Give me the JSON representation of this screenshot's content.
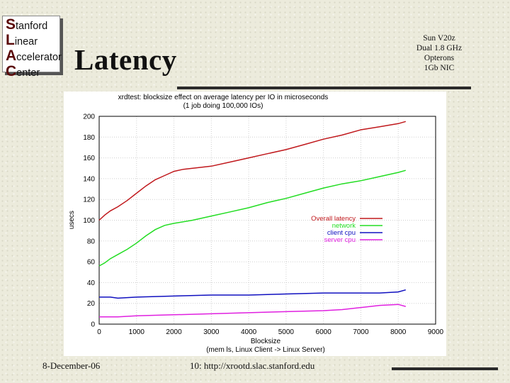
{
  "logo": {
    "lines": [
      {
        "cap": "S",
        "rest": "tanford"
      },
      {
        "cap": "L",
        "rest": "inear"
      },
      {
        "cap": "A",
        "rest": "ccelerator"
      },
      {
        "cap": "C",
        "rest": "enter"
      }
    ]
  },
  "slide": {
    "title": "Latency",
    "spec_lines": [
      "Sun V20z",
      "Dual 1.8 GHz",
      "Opterons",
      "1Gb NIC"
    ],
    "footer_date": "8-December-06",
    "footer_url": "10: http://xrootd.slac.stanford.edu"
  },
  "colors": {
    "overall": "#c0181c",
    "network": "#22dd22",
    "client": "#1010c0",
    "server": "#e020e0",
    "rule": "#2b2b2b"
  },
  "chart_data": {
    "type": "line",
    "title": "xrdtest: blocksize effect on average latency per IO in microseconds",
    "subtitle": "(1 job doing 100,000 IOs)",
    "xlabel": "Blocksize",
    "xlabel_note": "(mem ls, Linux Client -> Linux Server)",
    "ylabel": "usecs",
    "xlim": [
      0,
      9000
    ],
    "ylim": [
      0,
      200
    ],
    "x_ticks": [
      "0",
      "1000",
      "2000",
      "3000",
      "4000",
      "5000",
      "6000",
      "7000",
      "8000",
      "9000"
    ],
    "y_ticks": [
      "0",
      "20",
      "40",
      "60",
      "80",
      "100",
      "120",
      "140",
      "160",
      "180",
      "200"
    ],
    "grid": true,
    "legend_position": "right-middle",
    "series": [
      {
        "name": "Overall latency",
        "color": "#c0181c",
        "x": [
          0,
          150,
          300,
          500,
          750,
          1000,
          1250,
          1500,
          1750,
          2000,
          2250,
          2500,
          2750,
          3000,
          3500,
          4000,
          4500,
          5000,
          5500,
          6000,
          6500,
          7000,
          7500,
          8000,
          8200
        ],
        "y": [
          100,
          105,
          109,
          113,
          119,
          126,
          133,
          139,
          143,
          147,
          149,
          150,
          151,
          152,
          156,
          160,
          164,
          168,
          173,
          178,
          182,
          187,
          190,
          193,
          195
        ]
      },
      {
        "name": "network",
        "color": "#22dd22",
        "x": [
          0,
          150,
          300,
          500,
          750,
          1000,
          1250,
          1500,
          1750,
          2000,
          2500,
          3000,
          3500,
          4000,
          4500,
          5000,
          5500,
          6000,
          6500,
          7000,
          7500,
          8000,
          8200
        ],
        "y": [
          56,
          59,
          63,
          67,
          72,
          78,
          85,
          91,
          95,
          97,
          100,
          104,
          108,
          112,
          117,
          121,
          126,
          131,
          135,
          138,
          142,
          146,
          148
        ]
      },
      {
        "name": "client cpu",
        "color": "#1010c0",
        "x": [
          0,
          300,
          500,
          1000,
          2000,
          3000,
          4000,
          5000,
          6000,
          7000,
          7500,
          8000,
          8200
        ],
        "y": [
          26,
          26,
          25,
          26,
          27,
          28,
          28,
          29,
          30,
          30,
          30,
          31,
          33
        ]
      },
      {
        "name": "server cpu",
        "color": "#e020e0",
        "x": [
          0,
          300,
          500,
          1000,
          2000,
          3000,
          4000,
          5000,
          6000,
          6500,
          7000,
          7500,
          8000,
          8200
        ],
        "y": [
          7,
          7,
          7,
          8,
          9,
          10,
          11,
          12,
          13,
          14,
          16,
          18,
          19,
          17
        ]
      }
    ]
  }
}
